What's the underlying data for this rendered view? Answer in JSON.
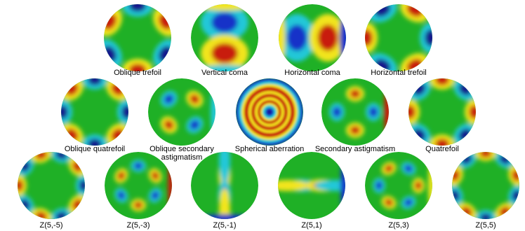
{
  "header_fragment": "",
  "colors": {
    "background": "#1fb026",
    "red": "#c81a0e",
    "orange": "#f08a10",
    "yellow": "#f2e51a",
    "cyan": "#22c8d8",
    "blue": "#1630c8",
    "dark_blue": "#14148c"
  },
  "rows": [
    {
      "items": [
        {
          "label": "Oblique trefoil",
          "pattern": "trefoil-oblique"
        },
        {
          "label": "Vertical coma",
          "pattern": "coma-vertical"
        },
        {
          "label": "Horizontal coma",
          "pattern": "coma-horizontal"
        },
        {
          "label": "Horizontal trefoil",
          "pattern": "trefoil-horizontal"
        }
      ]
    },
    {
      "items": [
        {
          "label": "Oblique quatrefoil",
          "pattern": "quatrefoil-oblique"
        },
        {
          "label": "Oblique secondary astigmatism",
          "pattern": "sec-astig-oblique"
        },
        {
          "label": "Spherical aberration",
          "pattern": "spherical"
        },
        {
          "label": "Secondary astigmatism",
          "pattern": "sec-astig"
        },
        {
          "label": "Quatrefoil",
          "pattern": "quatrefoil"
        }
      ]
    },
    {
      "items": [
        {
          "label": "Z(5,-5)",
          "pattern": "pentafoil-oblique"
        },
        {
          "label": "Z(5,-3)",
          "pattern": "z5m3"
        },
        {
          "label": "Z(5,-1)",
          "pattern": "z5m1"
        },
        {
          "label": "Z(5,1)",
          "pattern": "z51"
        },
        {
          "label": "Z(5,3)",
          "pattern": "z53"
        },
        {
          "label": "Z(5,5)",
          "pattern": "pentafoil"
        }
      ]
    }
  ]
}
